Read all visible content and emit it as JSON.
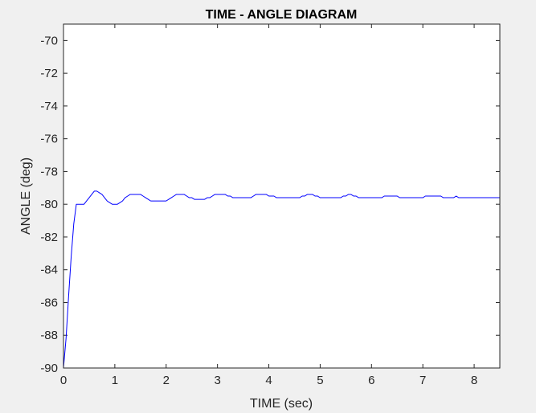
{
  "colors": {
    "figure_background": "#f0f0f0",
    "axes_background": "#ffffff",
    "line": "#0000ff",
    "axis": "#262626"
  },
  "chart_data": {
    "type": "line",
    "title": "TIME - ANGLE DIAGRAM",
    "xlabel": "TIME (sec)",
    "ylabel": "ANGLE (deg)",
    "xlim": [
      0,
      8.5
    ],
    "ylim": [
      -90,
      -69
    ],
    "xticks": [
      0,
      1,
      2,
      3,
      4,
      5,
      6,
      7,
      8
    ],
    "yticks": [
      -90,
      -88,
      -86,
      -84,
      -82,
      -80,
      -78,
      -76,
      -74,
      -72,
      -70
    ],
    "xtick_labels": [
      "0",
      "1",
      "2",
      "3",
      "4",
      "5",
      "6",
      "7",
      "8"
    ],
    "ytick_labels": [
      "-90",
      "-88",
      "-86",
      "-84",
      "-82",
      "-80",
      "-78",
      "-76",
      "-74",
      "-72",
      "-70"
    ],
    "grid": false,
    "series": [
      {
        "x": [
          0,
          0.05,
          0.1,
          0.15,
          0.2,
          0.25,
          0.3,
          0.35,
          0.4,
          0.45,
          0.5,
          0.55,
          0.6,
          0.65,
          0.7,
          0.75,
          0.8,
          0.85,
          0.9,
          0.95,
          1.0,
          1.05,
          1.1,
          1.15,
          1.2,
          1.25,
          1.3,
          1.35,
          1.4,
          1.45,
          1.5,
          1.55,
          1.6,
          1.65,
          1.7,
          1.75,
          1.8,
          1.85,
          1.9,
          1.95,
          2.0,
          2.05,
          2.1,
          2.15,
          2.2,
          2.25,
          2.3,
          2.35,
          2.4,
          2.45,
          2.5,
          2.55,
          2.6,
          2.65,
          2.7,
          2.75,
          2.8,
          2.85,
          2.9,
          2.95,
          3.0,
          3.05,
          3.1,
          3.15,
          3.2,
          3.25,
          3.3,
          3.35,
          3.4,
          3.45,
          3.5,
          3.55,
          3.6,
          3.65,
          3.7,
          3.75,
          3.8,
          3.85,
          3.9,
          3.95,
          4.0,
          4.05,
          4.1,
          4.15,
          4.2,
          4.4,
          4.6,
          4.65,
          4.7,
          4.75,
          4.8,
          4.85,
          4.9,
          4.95,
          5.0,
          5.2,
          5.4,
          5.45,
          5.5,
          5.55,
          5.6,
          5.65,
          5.7,
          5.75,
          5.8,
          6.0,
          6.2,
          6.25,
          6.3,
          6.35,
          6.4,
          6.45,
          6.5,
          6.55,
          6.6,
          6.8,
          7.0,
          7.05,
          7.1,
          7.15,
          7.2,
          7.25,
          7.3,
          7.35,
          7.4,
          7.5,
          7.6,
          7.65,
          7.7,
          7.75,
          7.8,
          7.85,
          7.9,
          8.0,
          8.2,
          8.5
        ],
        "y": [
          -90.0,
          -88.2,
          -85.6,
          -83.2,
          -81.2,
          -80.0,
          -80.0,
          -80.0,
          -80.0,
          -79.8,
          -79.6,
          -79.4,
          -79.2,
          -79.2,
          -79.3,
          -79.4,
          -79.6,
          -79.8,
          -79.9,
          -80.0,
          -80.0,
          -80.0,
          -79.9,
          -79.8,
          -79.6,
          -79.5,
          -79.4,
          -79.4,
          -79.4,
          -79.4,
          -79.4,
          -79.5,
          -79.6,
          -79.7,
          -79.8,
          -79.8,
          -79.8,
          -79.8,
          -79.8,
          -79.8,
          -79.8,
          -79.7,
          -79.6,
          -79.5,
          -79.4,
          -79.4,
          -79.4,
          -79.4,
          -79.5,
          -79.6,
          -79.6,
          -79.7,
          -79.7,
          -79.7,
          -79.7,
          -79.7,
          -79.6,
          -79.6,
          -79.5,
          -79.4,
          -79.4,
          -79.4,
          -79.4,
          -79.4,
          -79.5,
          -79.5,
          -79.6,
          -79.6,
          -79.6,
          -79.6,
          -79.6,
          -79.6,
          -79.6,
          -79.6,
          -79.5,
          -79.4,
          -79.4,
          -79.4,
          -79.4,
          -79.4,
          -79.5,
          -79.5,
          -79.5,
          -79.6,
          -79.6,
          -79.6,
          -79.6,
          -79.5,
          -79.5,
          -79.4,
          -79.4,
          -79.4,
          -79.5,
          -79.5,
          -79.6,
          -79.6,
          -79.6,
          -79.5,
          -79.5,
          -79.4,
          -79.4,
          -79.5,
          -79.5,
          -79.6,
          -79.6,
          -79.6,
          -79.6,
          -79.5,
          -79.5,
          -79.5,
          -79.5,
          -79.5,
          -79.5,
          -79.6,
          -79.6,
          -79.6,
          -79.6,
          -79.5,
          -79.5,
          -79.5,
          -79.5,
          -79.5,
          -79.5,
          -79.5,
          -79.6,
          -79.6,
          -79.6,
          -79.5,
          -79.6,
          -79.6,
          -79.6,
          -79.6,
          -79.6,
          -79.6,
          -79.6,
          -79.6
        ]
      }
    ]
  }
}
